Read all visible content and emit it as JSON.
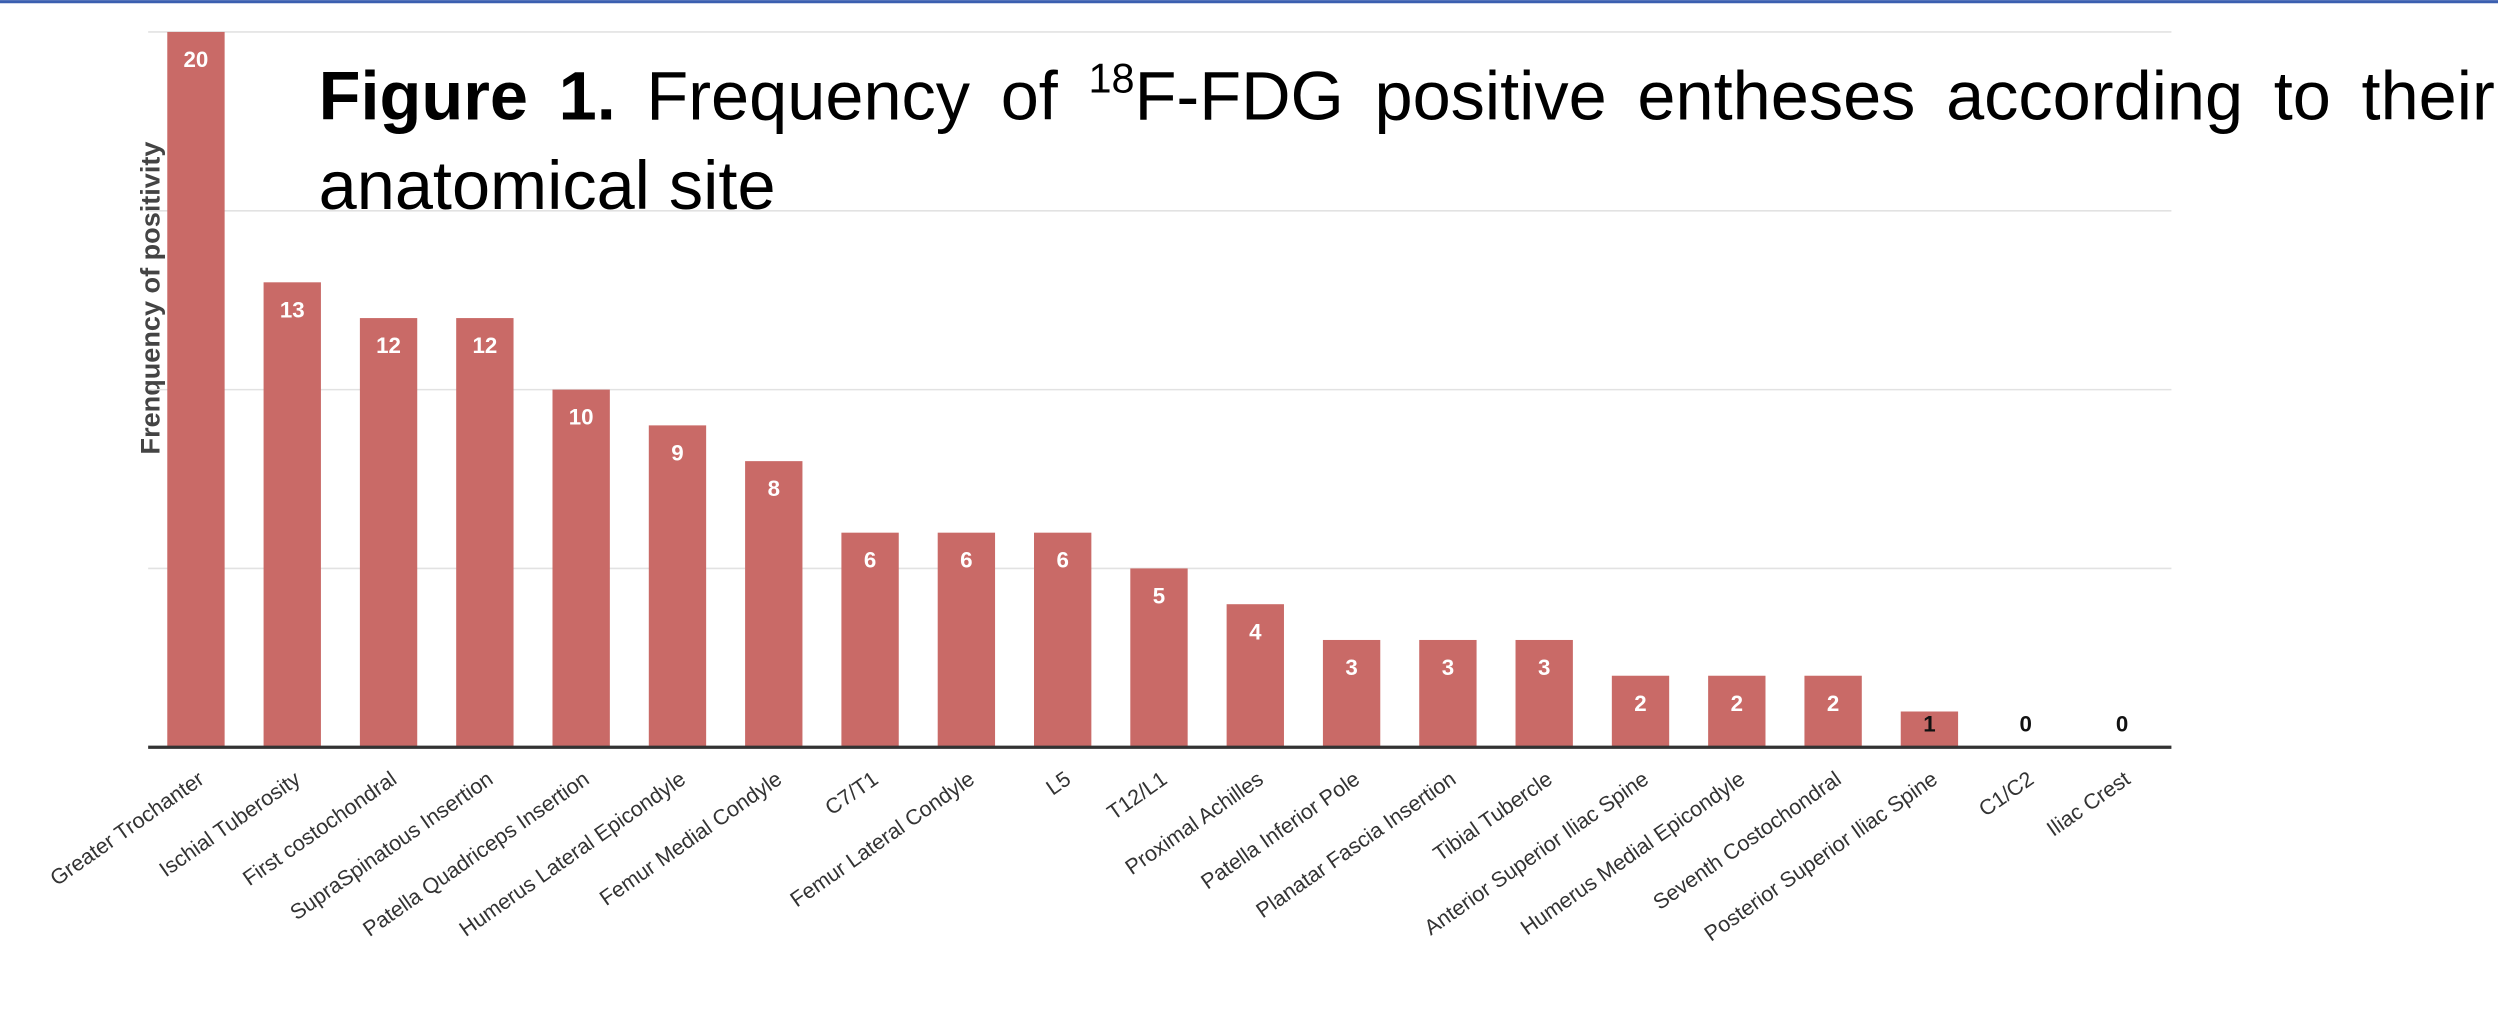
{
  "chart_data": {
    "type": "bar",
    "title": {
      "label": "Figure 1.",
      "text_before": "Frequency of ",
      "superscript": "18",
      "text_after": "F-FDG positive entheses according to their anatomical site"
    },
    "y_label": "Frenquency of positivity",
    "categories": [
      "Greater Trochanter",
      "Ischial Tuberosity",
      "First costochondral",
      "SupraSpinatous Insertion",
      "Patella Quadriceps Insertion",
      "Humerus Lateral Epicondyle",
      "Femur Medial Condyle",
      "C7/T1",
      "Femur Lateral Condyle",
      "L5",
      "T12/L1",
      "Proximal Achilles",
      "Patella Inferior Pole",
      "Planatar Fascia Insertion",
      "Tibial Tubercle",
      "Anterior Superior Iliac Spine",
      "Humerus Medial Epicondyle",
      "Seventh Costochondral",
      "Posterior Superior Iliac Spine",
      "C1/C2",
      "Iliac Crest"
    ],
    "values": [
      20,
      13,
      12,
      12,
      10,
      9,
      8,
      6,
      6,
      6,
      5,
      4,
      3,
      3,
      3,
      2,
      2,
      2,
      1,
      0,
      0
    ],
    "color": "#c96a67",
    "ylim": [
      0,
      20
    ],
    "yticks": [
      0,
      5,
      10,
      15,
      20
    ],
    "grid": true
  }
}
